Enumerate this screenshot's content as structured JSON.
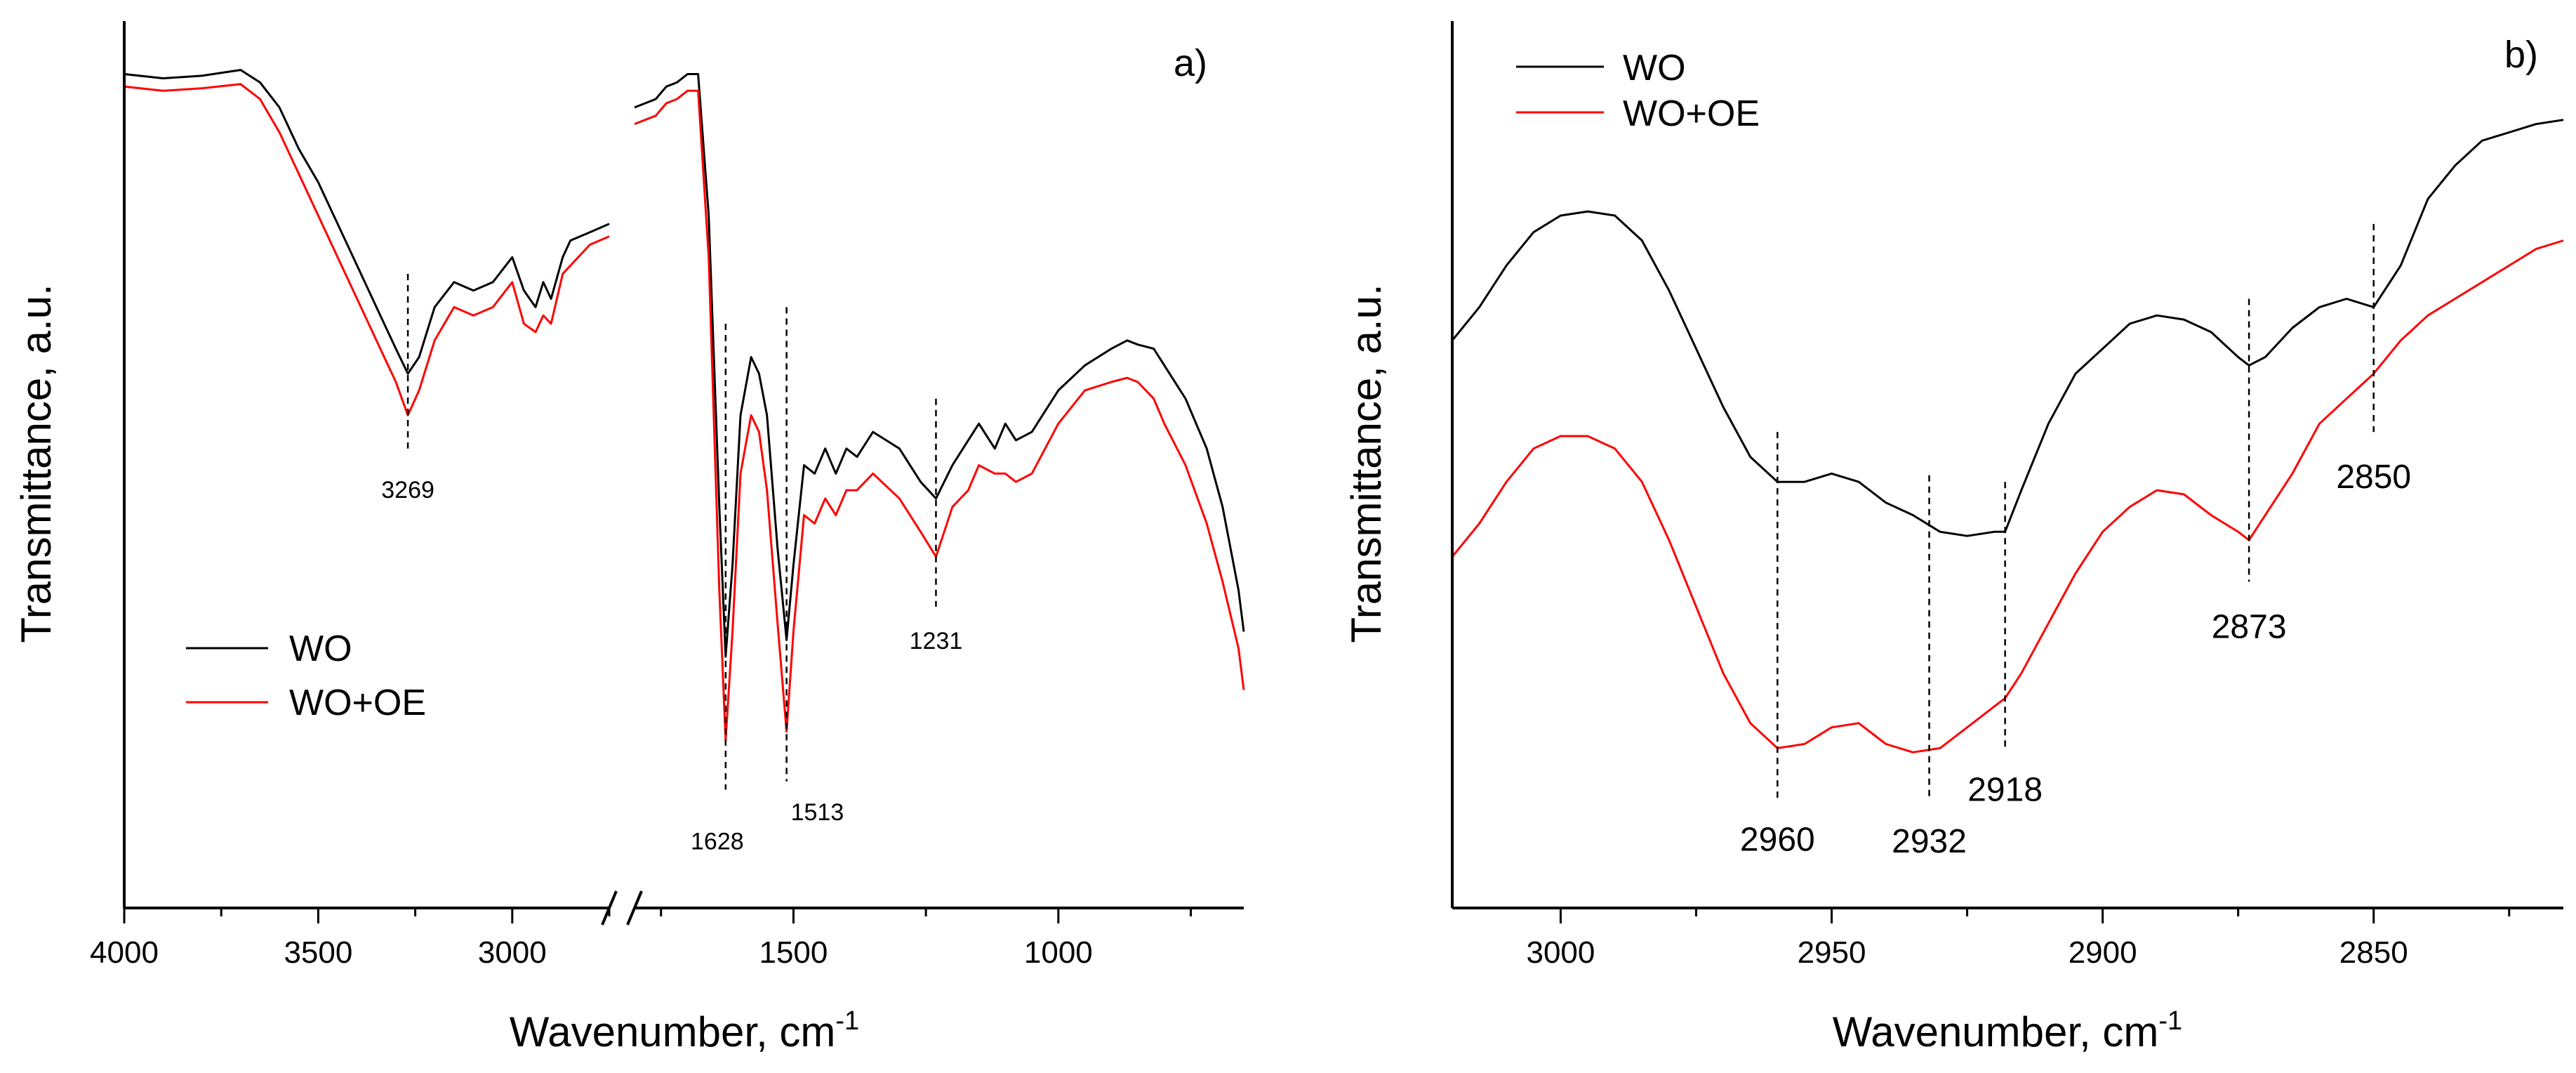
{
  "colors": {
    "wo": "#000000",
    "wo_oe": "#ff0000"
  },
  "chart_data": [
    {
      "id": "a",
      "type": "line",
      "panel_label": "a)",
      "title": "",
      "xlabel": "Wavenumber, cm",
      "xlabel_sup": "-1",
      "ylabel": "Transmittance, a.u.",
      "x_break": [
        2750,
        1800
      ],
      "xlim_left": [
        4000,
        2750
      ],
      "xlim_right": [
        1800,
        650
      ],
      "ylim": [
        0,
        1
      ],
      "yticks_shown": false,
      "xticks": [
        4000,
        3500,
        3000,
        1500,
        1000
      ],
      "xtick_labels": [
        "4000",
        "3500",
        "3000",
        "1500",
        "1000"
      ],
      "legend": {
        "position": "center-left",
        "entries": [
          "WO",
          "WO+OE"
        ]
      },
      "peaks": [
        {
          "label": "3269",
          "x": 3269
        },
        {
          "label": "1628",
          "x": 1628
        },
        {
          "label": "1513",
          "x": 1513
        },
        {
          "label": "1231",
          "x": 1231
        }
      ],
      "series": [
        {
          "name": "WO",
          "color": "#000000",
          "segments": [
            {
              "x": [
                4000,
                3900,
                3800,
                3700,
                3650,
                3600,
                3550,
                3500,
                3450,
                3400,
                3350,
                3300,
                3269,
                3240,
                3200,
                3150,
                3100,
                3050,
                3000,
                2970,
                2940,
                2920,
                2900,
                2870,
                2850,
                2800,
                2750
              ],
              "y": [
                0.97,
                0.965,
                0.968,
                0.975,
                0.96,
                0.93,
                0.88,
                0.84,
                0.79,
                0.74,
                0.69,
                0.64,
                0.61,
                0.63,
                0.69,
                0.72,
                0.71,
                0.72,
                0.75,
                0.71,
                0.69,
                0.72,
                0.7,
                0.75,
                0.77,
                0.78,
                0.79
              ]
            },
            {
              "x": [
                1800,
                1760,
                1740,
                1720,
                1700,
                1680,
                1660,
                1640,
                1628,
                1615,
                1600,
                1580,
                1565,
                1550,
                1530,
                1513,
                1500,
                1480,
                1460,
                1440,
                1420,
                1400,
                1380,
                1350,
                1300,
                1260,
                1231,
                1200,
                1170,
                1150,
                1120,
                1100,
                1080,
                1050,
                1000,
                950,
                900,
                870,
                850,
                820,
                800,
                760,
                720,
                690,
                660,
                650
              ],
              "y": [
                0.93,
                0.94,
                0.955,
                0.96,
                0.97,
                0.97,
                0.8,
                0.45,
                0.27,
                0.38,
                0.56,
                0.63,
                0.61,
                0.56,
                0.4,
                0.29,
                0.38,
                0.5,
                0.49,
                0.52,
                0.49,
                0.52,
                0.51,
                0.54,
                0.52,
                0.48,
                0.46,
                0.5,
                0.53,
                0.55,
                0.52,
                0.55,
                0.53,
                0.54,
                0.59,
                0.62,
                0.64,
                0.65,
                0.645,
                0.64,
                0.62,
                0.58,
                0.52,
                0.45,
                0.35,
                0.3
              ]
            }
          ]
        },
        {
          "name": "WO+OE",
          "color": "#ff0000",
          "segments": [
            {
              "x": [
                4000,
                3900,
                3800,
                3700,
                3650,
                3600,
                3550,
                3500,
                3450,
                3400,
                3350,
                3300,
                3269,
                3240,
                3200,
                3150,
                3100,
                3050,
                3000,
                2970,
                2940,
                2920,
                2900,
                2870,
                2850,
                2800,
                2750
              ],
              "y": [
                0.955,
                0.95,
                0.953,
                0.958,
                0.94,
                0.9,
                0.85,
                0.8,
                0.75,
                0.7,
                0.65,
                0.6,
                0.56,
                0.59,
                0.65,
                0.69,
                0.68,
                0.69,
                0.72,
                0.67,
                0.66,
                0.68,
                0.67,
                0.73,
                0.74,
                0.765,
                0.775
              ]
            },
            {
              "x": [
                1800,
                1760,
                1740,
                1720,
                1700,
                1680,
                1660,
                1640,
                1628,
                1615,
                1600,
                1580,
                1565,
                1550,
                1530,
                1513,
                1500,
                1480,
                1460,
                1440,
                1420,
                1400,
                1380,
                1350,
                1300,
                1260,
                1231,
                1200,
                1170,
                1150,
                1120,
                1100,
                1080,
                1050,
                1000,
                950,
                900,
                870,
                850,
                820,
                800,
                760,
                720,
                690,
                660,
                650
              ],
              "y": [
                0.91,
                0.92,
                0.935,
                0.94,
                0.95,
                0.95,
                0.75,
                0.35,
                0.17,
                0.3,
                0.49,
                0.56,
                0.54,
                0.47,
                0.31,
                0.18,
                0.3,
                0.44,
                0.43,
                0.46,
                0.44,
                0.47,
                0.47,
                0.49,
                0.46,
                0.42,
                0.39,
                0.45,
                0.47,
                0.5,
                0.49,
                0.49,
                0.48,
                0.49,
                0.55,
                0.59,
                0.6,
                0.605,
                0.6,
                0.58,
                0.55,
                0.5,
                0.43,
                0.36,
                0.28,
                0.23
              ]
            }
          ]
        }
      ]
    },
    {
      "id": "b",
      "type": "line",
      "panel_label": "b)",
      "title": "",
      "xlabel": "Wavenumber, cm",
      "xlabel_sup": "-1",
      "ylabel": "Transmittance, a.u.",
      "xlim": [
        3020,
        2815
      ],
      "ylim": [
        0,
        1
      ],
      "yticks_shown": false,
      "xticks": [
        3000,
        2950,
        2900,
        2850
      ],
      "xtick_labels": [
        "3000",
        "2950",
        "2900",
        "2850"
      ],
      "legend": {
        "position": "top-left",
        "entries": [
          "WO",
          "WO+OE"
        ]
      },
      "peaks": [
        {
          "label": "2960",
          "x": 2960
        },
        {
          "label": "2932",
          "x": 2932
        },
        {
          "label": "2918",
          "x": 2918
        },
        {
          "label": "2873",
          "x": 2873
        },
        {
          "label": "2850",
          "x": 2850
        }
      ],
      "series": [
        {
          "name": "WO",
          "color": "#000000",
          "segments": [
            {
              "x": [
                3020,
                3015,
                3010,
                3005,
                3000,
                2995,
                2990,
                2985,
                2980,
                2975,
                2970,
                2965,
                2960,
                2955,
                2950,
                2945,
                2940,
                2935,
                2930,
                2925,
                2920,
                2918,
                2915,
                2910,
                2905,
                2900,
                2895,
                2890,
                2885,
                2880,
                2875,
                2873,
                2870,
                2865,
                2860,
                2855,
                2850,
                2845,
                2840,
                2835,
                2830,
                2825,
                2820,
                2815
              ],
              "y": [
                0.65,
                0.69,
                0.74,
                0.78,
                0.8,
                0.805,
                0.8,
                0.77,
                0.71,
                0.64,
                0.57,
                0.51,
                0.48,
                0.48,
                0.49,
                0.48,
                0.455,
                0.44,
                0.42,
                0.415,
                0.42,
                0.42,
                0.47,
                0.55,
                0.61,
                0.64,
                0.67,
                0.68,
                0.675,
                0.66,
                0.63,
                0.62,
                0.63,
                0.665,
                0.69,
                0.7,
                0.69,
                0.74,
                0.82,
                0.86,
                0.89,
                0.9,
                0.91,
                0.915
              ]
            }
          ]
        },
        {
          "name": "WO+OE",
          "color": "#ff0000",
          "segments": [
            {
              "x": [
                3020,
                3015,
                3010,
                3005,
                3000,
                2995,
                2990,
                2985,
                2980,
                2975,
                2970,
                2965,
                2960,
                2955,
                2950,
                2945,
                2940,
                2935,
                2930,
                2925,
                2920,
                2918,
                2915,
                2910,
                2905,
                2900,
                2895,
                2890,
                2885,
                2880,
                2875,
                2873,
                2870,
                2865,
                2860,
                2855,
                2850,
                2845,
                2840,
                2835,
                2830,
                2825,
                2820,
                2815
              ],
              "y": [
                0.39,
                0.43,
                0.48,
                0.52,
                0.535,
                0.535,
                0.52,
                0.48,
                0.41,
                0.33,
                0.25,
                0.19,
                0.16,
                0.165,
                0.185,
                0.19,
                0.165,
                0.155,
                0.16,
                0.185,
                0.21,
                0.22,
                0.25,
                0.31,
                0.37,
                0.42,
                0.45,
                0.47,
                0.465,
                0.44,
                0.42,
                0.41,
                0.44,
                0.49,
                0.55,
                0.58,
                0.61,
                0.65,
                0.68,
                0.7,
                0.72,
                0.74,
                0.76,
                0.77
              ]
            }
          ]
        }
      ]
    }
  ]
}
